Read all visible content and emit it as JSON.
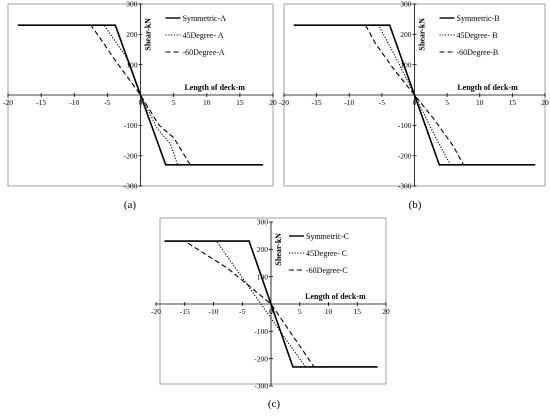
{
  "chart_data": [
    {
      "type": "line",
      "caption": "(a)",
      "xlabel": "Length of deck-m",
      "ylabel": "Shear-kN",
      "xlim": [
        -20,
        20
      ],
      "ylim": [
        -300,
        300
      ],
      "xticks": [
        -20,
        -15,
        -10,
        -5,
        0,
        5,
        10,
        15,
        20
      ],
      "yticks": [
        -300,
        -200,
        -100,
        100,
        200,
        300
      ],
      "grid": false,
      "legend_position": "top-right",
      "series": [
        {
          "name": "Symmetric-A",
          "style": "solid",
          "x": [
            -18.5,
            -3.8,
            3.8,
            18.5
          ],
          "y": [
            230,
            230,
            -230,
            -230
          ]
        },
        {
          "name": "45Degree- A",
          "style": "dotted",
          "x": [
            -18.5,
            -5.5,
            -2,
            0,
            2.5,
            4.5,
            5.6,
            18.5
          ],
          "y": [
            230,
            230,
            120,
            0,
            -110,
            -160,
            -230,
            -230
          ]
        },
        {
          "name": "-60Degree-A",
          "style": "dashed",
          "x": [
            -18.5,
            -7.5,
            -6.5,
            -4,
            0,
            2.8,
            5,
            7.5,
            18.5
          ],
          "y": [
            230,
            230,
            200,
            120,
            0,
            -100,
            -140,
            -230,
            -230
          ]
        }
      ]
    },
    {
      "type": "line",
      "caption": "(b)",
      "xlabel": "Length of deck-m",
      "ylabel": "Shear-kN",
      "xlim": [
        -20,
        20
      ],
      "ylim": [
        -300,
        300
      ],
      "xticks": [
        -20,
        -15,
        -10,
        -5,
        0,
        5,
        10,
        15,
        20
      ],
      "yticks": [
        -300,
        -200,
        -100,
        100,
        200,
        300
      ],
      "grid": false,
      "legend_position": "top-right",
      "series": [
        {
          "name": "Symmetric-B",
          "style": "solid",
          "x": [
            -18.5,
            -3.8,
            3.8,
            18.5
          ],
          "y": [
            230,
            230,
            -230,
            -230
          ]
        },
        {
          "name": "45Degree- B",
          "style": "dotted",
          "x": [
            -18.5,
            -5.5,
            -3,
            0,
            3,
            5.5,
            18.5
          ],
          "y": [
            230,
            230,
            130,
            0,
            -130,
            -230,
            -230
          ]
        },
        {
          "name": "-60Degree-B",
          "style": "dashed",
          "x": [
            -18.5,
            -7.5,
            -6,
            -3,
            0,
            3,
            6,
            7.5,
            18.5
          ],
          "y": [
            230,
            230,
            170,
            80,
            0,
            -80,
            -170,
            -230,
            -230
          ]
        }
      ]
    },
    {
      "type": "line",
      "caption": "(c)",
      "xlabel": "Length of deck-m",
      "ylabel": "Shear-kN",
      "xlim": [
        -20,
        20
      ],
      "ylim": [
        -300,
        300
      ],
      "xticks": [
        -20,
        -15,
        -10,
        -5,
        0,
        5,
        10,
        15,
        20
      ],
      "yticks": [
        -300,
        -200,
        -100,
        100,
        200,
        300
      ],
      "grid": false,
      "legend_position": "top-right",
      "series": [
        {
          "name": "Symmetric-C",
          "style": "solid",
          "x": [
            -18.5,
            -3.8,
            3.8,
            18.5
          ],
          "y": [
            230,
            230,
            -230,
            -230
          ]
        },
        {
          "name": "45Degree- C",
          "style": "dotted",
          "x": [
            -18.5,
            -9.5,
            6,
            18.5
          ],
          "y": [
            230,
            230,
            -230,
            -230
          ]
        },
        {
          "name": "-60Degree-C",
          "style": "dashed",
          "x": [
            -18.5,
            -15,
            -7.5,
            0,
            7.5,
            18.5
          ],
          "y": [
            230,
            230,
            130,
            0,
            -230,
            -230
          ]
        }
      ]
    }
  ]
}
